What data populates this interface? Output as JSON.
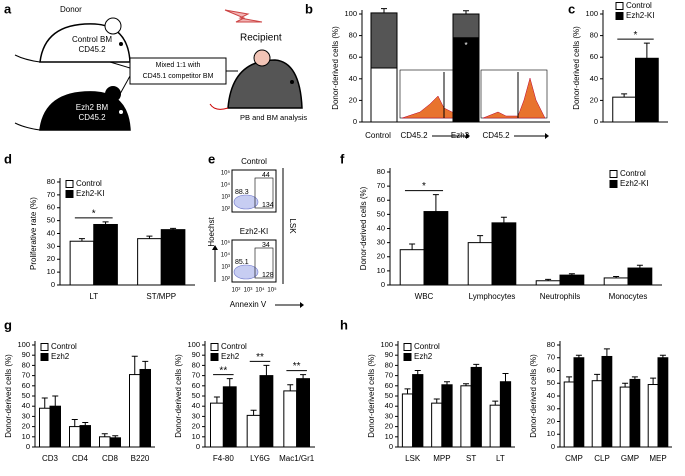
{
  "diagram": {
    "panel": "a",
    "donor": "Donor",
    "control_label": [
      "Control BM",
      "CD45.2"
    ],
    "ezh2_label": [
      "Ezh2 BM",
      "CD45.2"
    ],
    "mix_label": [
      "Mixed 1:1 with",
      "CD45.1 competitor BM"
    ],
    "recipient": "Recipient",
    "analysis": "PB and BM analysis"
  },
  "flow": {
    "panel": "e",
    "plots": [
      {
        "title": "Control",
        "gates": [
          44,
          88.3,
          134
        ]
      },
      {
        "title": "Ezh2-KI",
        "gates": [
          34,
          85.1,
          128
        ]
      }
    ],
    "population": "LSK",
    "y_label": "Hoechst",
    "x_label": "Annexin V",
    "yticks": [
      "10⁵",
      "10⁴",
      "10³",
      "10²"
    ],
    "xticks": [
      "10²",
      "10³",
      "10⁴",
      "10⁵"
    ]
  },
  "chart_data": [
    {
      "type": "stacked_bar",
      "panel": "b",
      "y_label": "Donor-derived cells (%)",
      "categories": [
        "Control",
        "Ezh2"
      ],
      "inset_labels": [
        "CD45.2",
        "CD45.2"
      ],
      "ylim": [
        0,
        100
      ],
      "yticks": [
        0,
        20,
        40,
        60,
        80,
        100
      ],
      "series": [
        {
          "colors": [
            "#ffffff",
            "#000000"
          ],
          "values": [
            50,
            78
          ],
          "errors": [
            5,
            4
          ]
        },
        {
          "color": "#555555",
          "values": [
            51,
            22
          ],
          "errors": [
            4,
            3
          ]
        }
      ],
      "significance": [
        null,
        "*"
      ]
    },
    {
      "type": "bar",
      "panel": "c",
      "y_label": "Donor-derived cells (%)",
      "ylim": [
        0,
        100
      ],
      "yticks": [
        0,
        20,
        40,
        60,
        80,
        100
      ],
      "legend": "upper right",
      "series": [
        {
          "name": "Control",
          "color": "#ffffff",
          "values": [
            23
          ],
          "errors": [
            3
          ]
        },
        {
          "name": "Ezh2-KI",
          "color": "#000000",
          "values": [
            59
          ],
          "errors": [
            14
          ]
        }
      ],
      "significance": [
        "*"
      ]
    },
    {
      "type": "bar",
      "panel": "d",
      "y_label": "Proliferative rate (%)",
      "categories": [
        "LT",
        "ST/MPP"
      ],
      "ylim": [
        0,
        80
      ],
      "yticks": [
        0,
        10,
        20,
        30,
        40,
        50,
        60,
        70,
        80
      ],
      "legend": "upper left",
      "series": [
        {
          "name": "Control",
          "color": "#ffffff",
          "values": [
            34,
            36
          ],
          "errors": [
            2,
            2
          ]
        },
        {
          "name": "Ezh2-KI",
          "color": "#000000",
          "values": [
            47,
            43
          ],
          "errors": [
            2,
            1
          ]
        }
      ],
      "significance": [
        "*",
        null
      ]
    },
    {
      "type": "bar",
      "panel": "f",
      "y_label": "Donor-derived cells (%)",
      "categories": [
        "WBC",
        "Lymphocytes",
        "Neutrophils",
        "Monocytes"
      ],
      "ylim": [
        0,
        80
      ],
      "yticks": [
        0,
        10,
        20,
        30,
        40,
        50,
        60,
        70,
        80
      ],
      "legend": "upper right",
      "series": [
        {
          "name": "Control",
          "color": "#ffffff",
          "values": [
            25,
            30,
            3,
            5
          ],
          "errors": [
            4,
            5,
            1,
            1
          ]
        },
        {
          "name": "Ezh2-KI",
          "color": "#000000",
          "values": [
            52,
            44,
            7,
            12
          ],
          "errors": [
            12,
            4,
            1,
            2
          ]
        }
      ],
      "significance": [
        "*",
        null,
        null,
        null
      ]
    },
    {
      "type": "bar",
      "panel": "g",
      "y_label": "Donor-derived cells (%)",
      "categories": [
        "CD3",
        "CD4",
        "CD8",
        "B220"
      ],
      "ylim": [
        0,
        100
      ],
      "yticks": [
        0,
        10,
        20,
        30,
        40,
        50,
        60,
        70,
        80,
        90,
        100
      ],
      "legend": "upper left",
      "series": [
        {
          "name": "Control",
          "color": "#ffffff",
          "values": [
            38,
            20,
            10,
            71
          ],
          "errors": [
            10,
            7,
            3,
            18
          ]
        },
        {
          "name": "Ezh2",
          "color": "#000000",
          "values": [
            40,
            21,
            9,
            76
          ],
          "errors": [
            10,
            3,
            2,
            8
          ]
        }
      ]
    },
    {
      "type": "bar",
      "y_label": "Donor-derived cells (%)",
      "categories": [
        "F4-80",
        "LY6G",
        "Mac1/Gr1"
      ],
      "ylim": [
        0,
        100
      ],
      "yticks": [
        0,
        10,
        20,
        30,
        40,
        50,
        60,
        70,
        80,
        90,
        100
      ],
      "legend": "upper left",
      "series": [
        {
          "name": "Control",
          "color": "#ffffff",
          "values": [
            43,
            31,
            55
          ],
          "errors": [
            6,
            5,
            6
          ]
        },
        {
          "name": "Ezh2",
          "color": "#000000",
          "values": [
            59,
            70,
            67
          ],
          "errors": [
            8,
            10,
            4
          ]
        }
      ],
      "significance": [
        "**",
        "**",
        "**"
      ]
    },
    {
      "type": "bar",
      "panel": "h",
      "y_label": "Donor-derived cells (%)",
      "categories": [
        "LSK",
        "MPP",
        "ST",
        "LT"
      ],
      "ylim": [
        0,
        100
      ],
      "yticks": [
        0,
        10,
        20,
        30,
        40,
        50,
        60,
        70,
        80,
        90,
        100
      ],
      "legend": "upper left",
      "series": [
        {
          "name": "Control",
          "color": "#ffffff",
          "values": [
            52,
            43,
            60,
            41
          ],
          "errors": [
            5,
            4,
            2,
            4
          ]
        },
        {
          "name": "Ezh2",
          "color": "#000000",
          "values": [
            71,
            61,
            78,
            64
          ],
          "errors": [
            4,
            3,
            3,
            8
          ]
        }
      ]
    },
    {
      "type": "bar",
      "y_label": "Donor-derived cells (%)",
      "categories": [
        "CMP",
        "CLP",
        "GMP",
        "MEP"
      ],
      "ylim": [
        0,
        80
      ],
      "yticks": [
        0,
        10,
        20,
        30,
        40,
        50,
        60,
        70,
        80
      ],
      "series": [
        {
          "name": "Control",
          "color": "#ffffff",
          "values": [
            51,
            52,
            47,
            49
          ],
          "errors": [
            4,
            5,
            3,
            5
          ]
        },
        {
          "name": "Ezh2",
          "color": "#000000",
          "values": [
            70,
            71,
            53,
            70
          ],
          "errors": [
            2,
            6,
            2,
            2
          ]
        }
      ]
    }
  ]
}
